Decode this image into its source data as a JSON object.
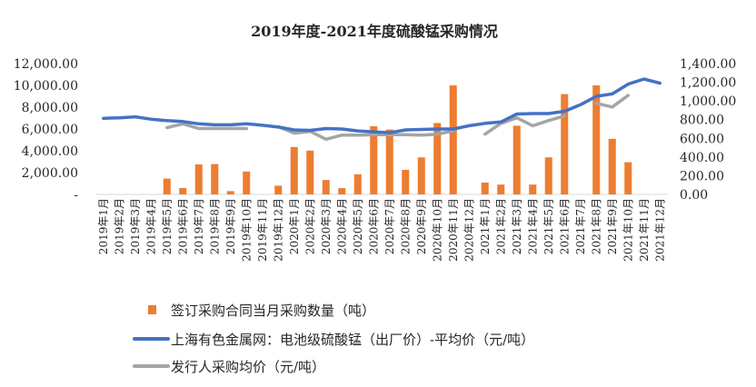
{
  "chart_data": {
    "type": "bar+line",
    "title": "2019年度-2021年度硫酸锰采购情况",
    "categories": [
      "2019年1月",
      "2019年2月",
      "2019年3月",
      "2019年4月",
      "2019年5月",
      "2019年6月",
      "2019年7月",
      "2019年8月",
      "2019年9月",
      "2019年10月",
      "2019年11月",
      "2019年12月",
      "2020年1月",
      "2020年2月",
      "2020年3月",
      "2020年4月",
      "2020年5月",
      "2020年6月",
      "2020年7月",
      "2020年8月",
      "2020年9月",
      "2020年10月",
      "2020年11月",
      "2020年12月",
      "2021年1月",
      "2021年2月",
      "2021年3月",
      "2021年4月",
      "2021年5月",
      "2021年6月",
      "2021年7月",
      "2021年8月",
      "2021年9月",
      "2021年10月",
      "2021年11月",
      "2021年12月"
    ],
    "left_axis": {
      "ylim": [
        0,
        12000
      ],
      "ticks": [
        0,
        2000,
        4000,
        6000,
        8000,
        10000,
        12000
      ],
      "tick_labels": [
        "-",
        "2,000.00",
        "4,000.00",
        "6,000.00",
        "8,000.00",
        "10,000.00",
        "12,000.00"
      ]
    },
    "right_axis": {
      "ylim": [
        0,
        1400
      ],
      "ticks": [
        0,
        200,
        400,
        600,
        800,
        1000,
        1200,
        1400
      ],
      "tick_labels": [
        "0.00",
        "200.00",
        "400.00",
        "600.00",
        "800.00",
        "1,000.00",
        "1,200.00",
        "1,400.00"
      ]
    },
    "grid": false,
    "legend_position": "bottom-left",
    "series": [
      {
        "name": "签订采购合同当月采购数量（吨）",
        "type": "bar",
        "axis": "left",
        "color": "#ED7D31",
        "values": [
          0,
          0,
          0,
          0,
          1450,
          580,
          2750,
          2780,
          300,
          2100,
          0,
          800,
          4350,
          4020,
          1320,
          570,
          1850,
          6250,
          5950,
          2250,
          3400,
          6550,
          10000,
          0,
          1080,
          900,
          6300,
          900,
          3400,
          9200,
          0,
          10000,
          5100,
          2950,
          0,
          0
        ]
      },
      {
        "name": "上海有色金属网：电池级硫酸锰（出厂价）-平均价（元/吨）",
        "type": "line",
        "axis": "right",
        "color": "#4472C4",
        "values": [
          815,
          820,
          830,
          805,
          790,
          780,
          755,
          745,
          745,
          755,
          740,
          720,
          690,
          685,
          705,
          700,
          680,
          670,
          660,
          690,
          695,
          700,
          700,
          735,
          760,
          775,
          860,
          865,
          865,
          890,
          960,
          1050,
          1075,
          1180,
          1235,
          1190
        ]
      },
      {
        "name": "发行人采购均价（元/吨）",
        "type": "line",
        "axis": "right",
        "color": "#A5A5A5",
        "values": [
          null,
          null,
          null,
          null,
          715,
          755,
          705,
          705,
          705,
          705,
          null,
          725,
          655,
          675,
          590,
          635,
          635,
          640,
          640,
          640,
          635,
          645,
          680,
          null,
          645,
          760,
          820,
          735,
          790,
          840,
          null,
          975,
          935,
          1060,
          null,
          null
        ]
      }
    ]
  }
}
